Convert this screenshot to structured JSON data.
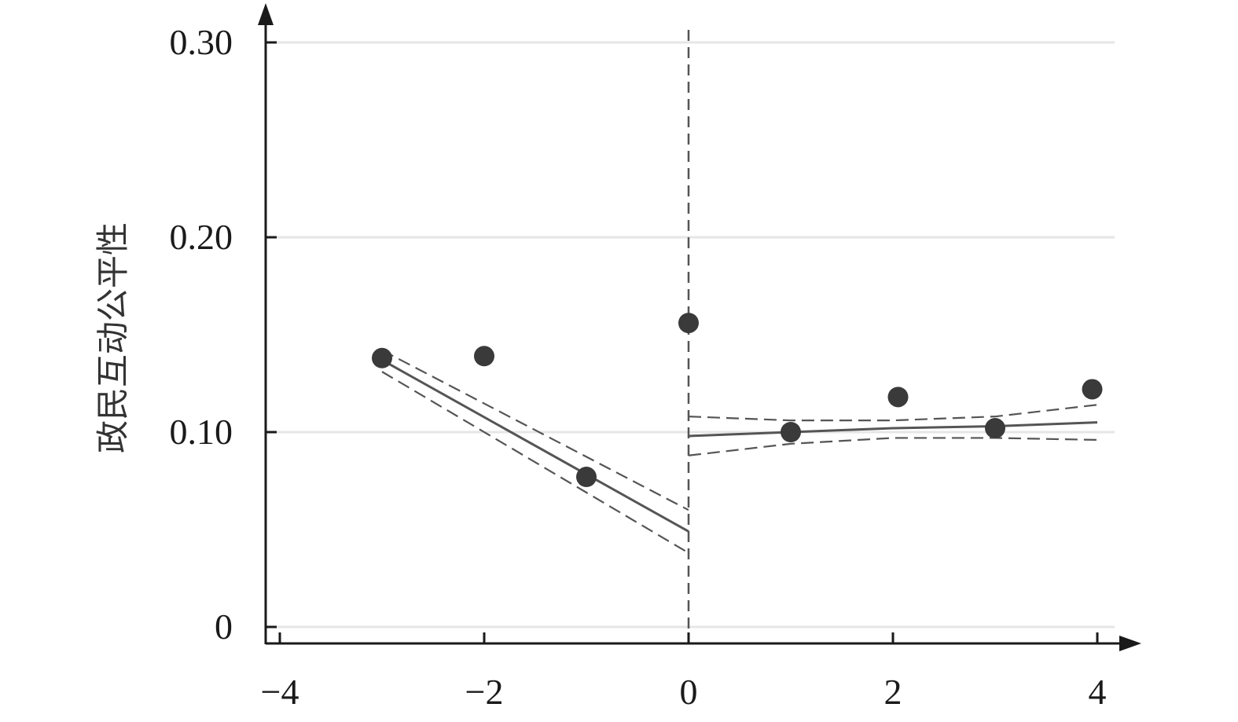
{
  "chart_data": {
    "type": "scatter",
    "ylabel": "政民互动公平性",
    "xlabel": "",
    "xlim": [
      -4,
      4
    ],
    "ylim": [
      0,
      0.3
    ],
    "xticks": [
      -4,
      -2,
      0,
      2,
      4
    ],
    "xtick_labels": [
      "−4",
      "−2",
      "0",
      "2",
      "4"
    ],
    "yticks": [
      0,
      0.1,
      0.2,
      0.3
    ],
    "ytick_labels": [
      "0",
      "0.10",
      "0.20",
      "0.30"
    ],
    "grid": "horizontal",
    "cutoff": 0,
    "points": [
      {
        "x": -3,
        "y": 0.138
      },
      {
        "x": -2,
        "y": 0.139
      },
      {
        "x": -1,
        "y": 0.077
      },
      {
        "x": 0,
        "y": 0.156
      },
      {
        "x": 1,
        "y": 0.1
      },
      {
        "x": 2.05,
        "y": 0.118
      },
      {
        "x": 3,
        "y": 0.102
      },
      {
        "x": 3.95,
        "y": 0.122
      }
    ],
    "fit_left": {
      "x": [
        -3,
        0
      ],
      "y": [
        0.137,
        0.049
      ],
      "ci_upper": [
        0.142,
        0.06
      ],
      "ci_lower": [
        0.131,
        0.038
      ]
    },
    "fit_right": {
      "x": [
        0,
        1,
        2,
        3,
        4
      ],
      "y": [
        0.098,
        0.1,
        0.102,
        0.103,
        0.105
      ],
      "ci_upper": [
        0.108,
        0.106,
        0.106,
        0.108,
        0.114
      ],
      "ci_lower": [
        0.088,
        0.094,
        0.097,
        0.097,
        0.096
      ]
    },
    "colors": {
      "axis": "#1a1a1a",
      "grid": "#e6e6e6",
      "points": "#3a3a3a",
      "fit_line": "#555555",
      "ci_line": "#555555",
      "cutoff_line": "#555555"
    }
  }
}
